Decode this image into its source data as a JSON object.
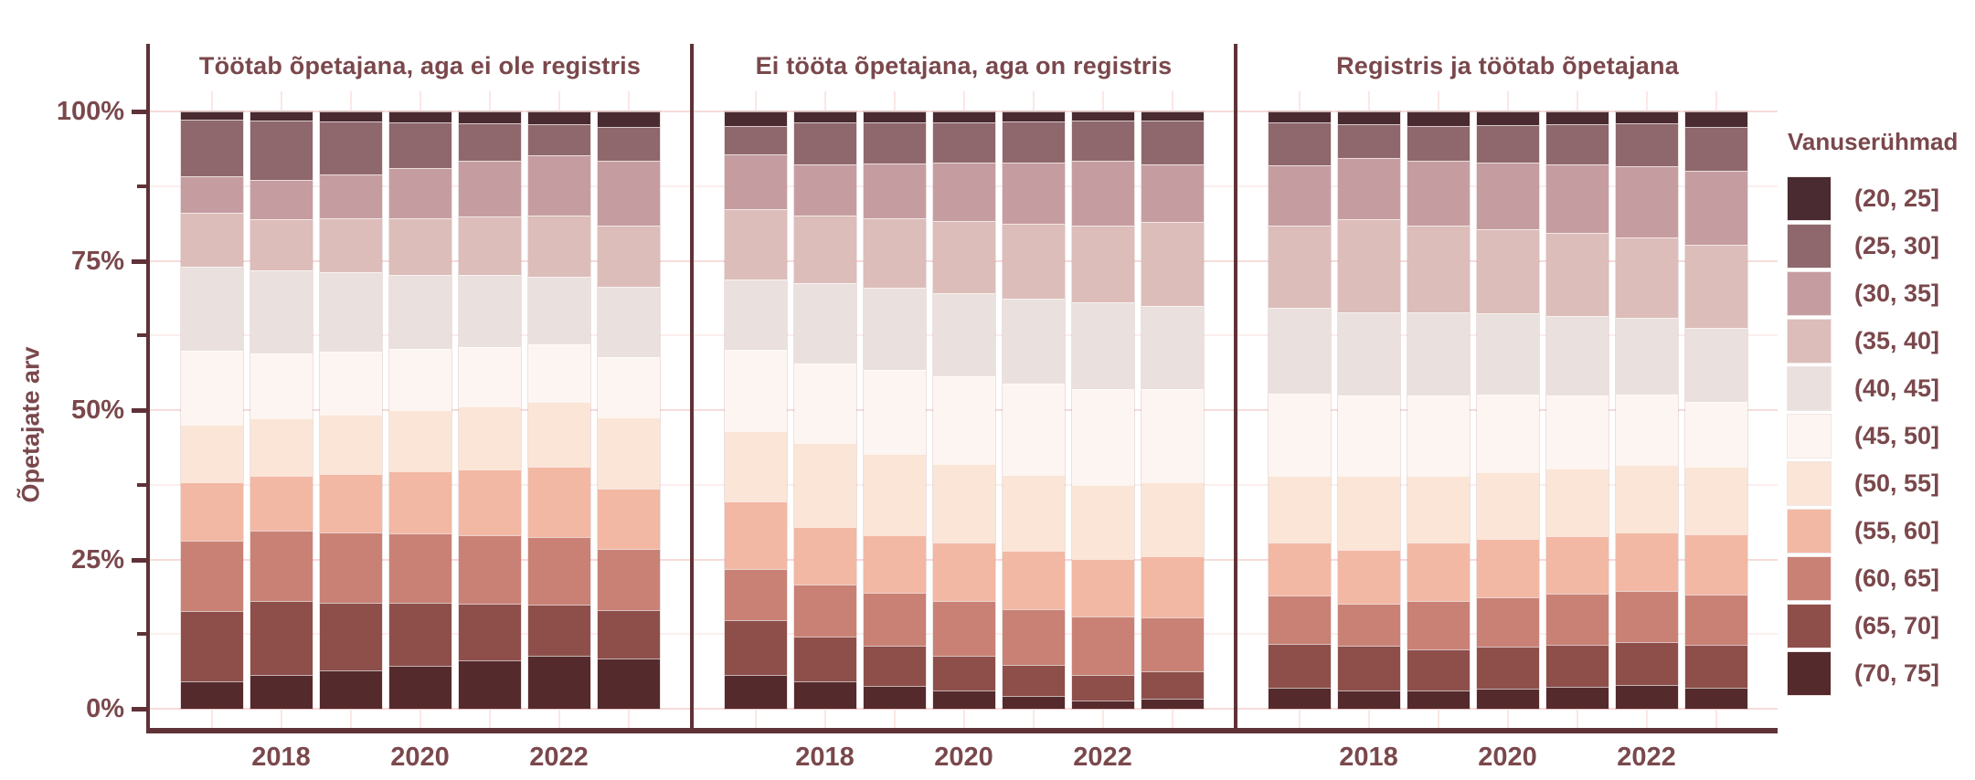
{
  "y_axis": {
    "title": "Õpetajate arv",
    "major_tick_labels": [
      "100%",
      "75%",
      "50%",
      "25%",
      "0%"
    ]
  },
  "x_axis": {
    "tick_labels": [
      "2018",
      "2020",
      "2022"
    ],
    "tick_positions": [
      1,
      3,
      5
    ]
  },
  "legend": {
    "title": "Vanuserühmad"
  },
  "age_groups": [
    {
      "label": "(20, 25]",
      "color": "#4a2b31"
    },
    {
      "label": "(25, 30]",
      "color": "#8e686d"
    },
    {
      "label": "(30, 35]",
      "color": "#c59da1"
    },
    {
      "label": "(35, 40]",
      "color": "#dcbdb9"
    },
    {
      "label": "(40, 45]",
      "color": "#eae0dd"
    },
    {
      "label": "(45, 50]",
      "color": "#fdf5f1"
    },
    {
      "label": "(50, 55]",
      "color": "#fae5d6"
    },
    {
      "label": "(55, 60]",
      "color": "#f2b8a4"
    },
    {
      "label": "(60, 65]",
      "color": "#c98175"
    },
    {
      "label": "(65, 70]",
      "color": "#8e4f4b"
    },
    {
      "label": "(70, 75]",
      "color": "#552a2d"
    }
  ],
  "chart_data": {
    "type": "bar",
    "stacked": true,
    "percent": true,
    "years": [
      2017,
      2018,
      2019,
      2020,
      2021,
      2022,
      2023
    ],
    "ylim": [
      0,
      100
    ],
    "legend_position": "right",
    "facets": [
      {
        "title": "Töötab õpetajana, aga ei ole registris",
        "series": [
          {
            "name": "(20, 25]",
            "values": [
              1.3,
              1.5,
              1.7,
              1.9,
              2.0,
              2.2,
              2.6
            ]
          },
          {
            "name": "(25, 30]",
            "values": [
              9.5,
              10.0,
              8.8,
              7.6,
              6.3,
              5.1,
              5.7
            ]
          },
          {
            "name": "(30, 35]",
            "values": [
              6.1,
              6.5,
              7.4,
              8.4,
              9.3,
              10.2,
              10.8
            ]
          },
          {
            "name": "(35, 40]",
            "values": [
              9.1,
              8.6,
              9.0,
              9.4,
              9.8,
              10.2,
              10.2
            ]
          },
          {
            "name": "(40, 45]",
            "values": [
              14.0,
              14.0,
              13.3,
              12.4,
              12.0,
              11.3,
              11.8
            ]
          },
          {
            "name": "(45, 50]",
            "values": [
              12.4,
              10.8,
              10.5,
              10.3,
              10.0,
              9.7,
              10.2
            ]
          },
          {
            "name": "(50, 55]",
            "values": [
              9.7,
              9.7,
              10.0,
              10.2,
              10.5,
              10.8,
              11.8
            ]
          },
          {
            "name": "(55, 60]",
            "values": [
              9.7,
              9.1,
              9.8,
              10.5,
              11.1,
              11.8,
              10.2
            ]
          },
          {
            "name": "(60, 65]",
            "values": [
              11.8,
              11.8,
              11.7,
              11.6,
              11.4,
              11.3,
              10.2
            ]
          },
          {
            "name": "(65, 70]",
            "values": [
              11.8,
              12.4,
              11.4,
              10.5,
              9.5,
              8.6,
              8.1
            ]
          },
          {
            "name": "(70, 75]",
            "values": [
              4.6,
              5.7,
              6.4,
              7.2,
              8.1,
              8.9,
              8.4
            ]
          }
        ]
      },
      {
        "title": "Ei tööta õpetajana, aga on registris",
        "series": [
          {
            "name": "(20, 25]",
            "values": [
              2.4,
              1.9,
              1.8,
              1.8,
              1.7,
              1.6,
              1.5
            ]
          },
          {
            "name": "(25, 30]",
            "values": [
              4.8,
              6.9,
              6.9,
              6.8,
              6.8,
              6.7,
              7.3
            ]
          },
          {
            "name": "(30, 35]",
            "values": [
              9.1,
              8.6,
              9.2,
              9.7,
              10.3,
              10.8,
              9.7
            ]
          },
          {
            "name": "(35, 40]",
            "values": [
              11.8,
              11.3,
              11.7,
              12.1,
              12.5,
              12.9,
              14.0
            ]
          },
          {
            "name": "(40, 45]",
            "values": [
              11.8,
              13.4,
              13.7,
              14.0,
              14.2,
              14.5,
              14.0
            ]
          },
          {
            "name": "(45, 50]",
            "values": [
              13.6,
              13.4,
              14.1,
              14.6,
              15.3,
              16.1,
              15.6
            ]
          },
          {
            "name": "(50, 55]",
            "values": [
              11.8,
              14.0,
              13.6,
              13.2,
              12.8,
              12.4,
              12.4
            ]
          },
          {
            "name": "(55, 60]",
            "values": [
              11.3,
              9.7,
              9.7,
              9.7,
              9.7,
              9.7,
              10.2
            ]
          },
          {
            "name": "(60, 65]",
            "values": [
              8.6,
              8.6,
              8.9,
              9.2,
              9.4,
              9.7,
              9.1
            ]
          },
          {
            "name": "(65, 70]",
            "values": [
              9.1,
              7.5,
              6.7,
              5.9,
              5.1,
              4.3,
              4.5
            ]
          },
          {
            "name": "(70, 75]",
            "values": [
              5.7,
              4.6,
              3.8,
              3.0,
              2.2,
              1.4,
              1.7
            ]
          }
        ]
      },
      {
        "title": "Registris ja töötab õpetajana",
        "series": [
          {
            "name": "(20, 25]",
            "values": [
              1.8,
              2.2,
              2.4,
              2.3,
              2.1,
              2.0,
              2.6
            ]
          },
          {
            "name": "(25, 30]",
            "values": [
              7.2,
              5.6,
              5.9,
              6.3,
              6.7,
              7.1,
              7.3
            ]
          },
          {
            "name": "(30, 35]",
            "values": [
              10.1,
              10.2,
              10.8,
              11.2,
              11.6,
              12.0,
              12.4
            ]
          },
          {
            "name": "(35, 40]",
            "values": [
              13.8,
              15.6,
              14.5,
              14.1,
              13.8,
              13.4,
              14.0
            ]
          },
          {
            "name": "(40, 45]",
            "values": [
              14.3,
              14.0,
              14.0,
              13.6,
              13.3,
              12.9,
              12.4
            ]
          },
          {
            "name": "(45, 50]",
            "values": [
              13.8,
              13.4,
              13.4,
              12.9,
              12.3,
              11.8,
              10.8
            ]
          },
          {
            "name": "(50, 55]",
            "values": [
              11.1,
              12.4,
              11.3,
              11.3,
              11.3,
              11.3,
              11.3
            ]
          },
          {
            "name": "(55, 60]",
            "values": [
              9.0,
              9.1,
              9.7,
              9.7,
              9.7,
              9.7,
              10.2
            ]
          },
          {
            "name": "(60, 65]",
            "values": [
              8.0,
              7.0,
              8.1,
              8.3,
              8.5,
              8.6,
              8.4
            ]
          },
          {
            "name": "(65, 70]",
            "values": [
              7.4,
              7.5,
              7.0,
              7.1,
              7.1,
              7.2,
              7.2
            ]
          },
          {
            "name": "(70, 75]",
            "values": [
              3.5,
              3.0,
              3.0,
              3.3,
              3.6,
              3.9,
              3.5
            ]
          }
        ]
      }
    ]
  }
}
